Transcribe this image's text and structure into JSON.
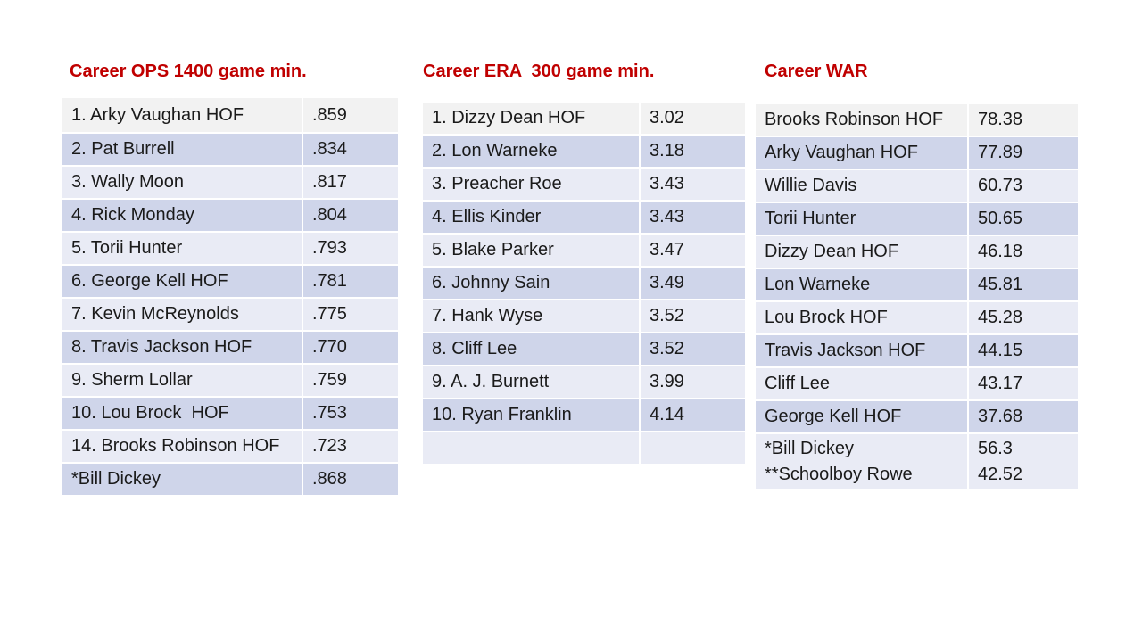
{
  "ops": {
    "title": "Career OPS 1400 game min.",
    "rows": [
      {
        "name": "1. Arky Vaughan HOF",
        "value": ".859"
      },
      {
        "name": "2. Pat Burrell",
        "value": ".834"
      },
      {
        "name": "3. Wally Moon",
        "value": ".817"
      },
      {
        "name": "4. Rick Monday",
        "value": ".804"
      },
      {
        "name": "5. Torii Hunter",
        "value": ".793"
      },
      {
        "name": "6. George Kell HOF",
        "value": ".781"
      },
      {
        "name": "7. Kevin McReynolds",
        "value": ".775"
      },
      {
        "name": "8. Travis Jackson HOF",
        "value": ".770"
      },
      {
        "name": "9. Sherm Lollar",
        "value": ".759"
      },
      {
        "name": "10. Lou Brock  HOF",
        "value": ".753"
      },
      {
        "name": "14. Brooks Robinson HOF",
        "value": ".723"
      },
      {
        "name": "*Bill Dickey",
        "value": ".868"
      }
    ]
  },
  "era": {
    "title": "Career ERA  300 game min.",
    "rows": [
      {
        "name": "1. Dizzy Dean HOF",
        "value": "3.02"
      },
      {
        "name": "2. Lon Warneke",
        "value": "3.18"
      },
      {
        "name": "3. Preacher Roe",
        "value": "3.43"
      },
      {
        "name": "4. Ellis Kinder",
        "value": "3.43"
      },
      {
        "name": "5. Blake Parker",
        "value": "3.47"
      },
      {
        "name": "6. Johnny Sain",
        "value": "3.49"
      },
      {
        "name": "7. Hank Wyse",
        "value": "3.52"
      },
      {
        "name": "8. Cliff Lee",
        "value": "3.52"
      },
      {
        "name": "9. A. J. Burnett",
        "value": "3.99"
      },
      {
        "name": "10. Ryan Franklin",
        "value": "4.14"
      },
      {
        "name": "",
        "value": ""
      }
    ]
  },
  "war": {
    "title": "Career WAR",
    "rows": [
      {
        "name": "Brooks Robinson HOF",
        "value": "78.38"
      },
      {
        "name": "Arky Vaughan HOF",
        "value": "77.89"
      },
      {
        "name": "Willie Davis",
        "value": "60.73"
      },
      {
        "name": "Torii Hunter",
        "value": "50.65"
      },
      {
        "name": "Dizzy Dean HOF",
        "value": "46.18"
      },
      {
        "name": "Lon Warneke",
        "value": "45.81"
      },
      {
        "name": "Lou Brock HOF",
        "value": "45.28"
      },
      {
        "name": "Travis Jackson HOF",
        "value": "44.15"
      },
      {
        "name": "Cliff Lee",
        "value": "43.17"
      },
      {
        "name": "George Kell HOF",
        "value": "37.68"
      }
    ],
    "footnote": {
      "name_1": "*Bill Dickey",
      "name_2": "**Schoolboy Rowe",
      "value_1": "56.3",
      "value_2": "42.52"
    }
  }
}
